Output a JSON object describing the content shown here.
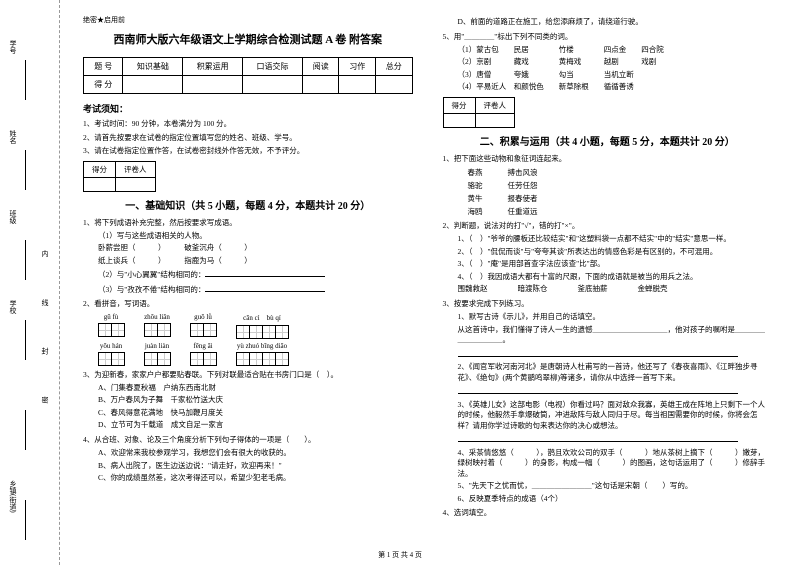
{
  "sidebar": {
    "labels": [
      "学号",
      "姓名",
      "班级",
      "学校",
      "",
      "乡镇(街道)"
    ],
    "vert": "内 线 封 密"
  },
  "header": {
    "secret": "绝密★启用前",
    "title": "西南师大版六年级语文上学期综合检测试题 A 卷 附答案"
  },
  "score_table": {
    "row1": [
      "题 号",
      "知识基础",
      "积累运用",
      "口语交际",
      "阅读",
      "习作",
      "总分"
    ],
    "row2": [
      "得 分",
      "",
      "",
      "",
      "",
      "",
      ""
    ]
  },
  "notice": {
    "head": "考试须知：",
    "items": [
      "1、考试时间：90 分钟，本卷满分为 100 分。",
      "2、请首先按要求在试卷的指定位置填写您的姓名、班级、学号。",
      "3、请在试卷指定位置作答，在试卷密封线外作答无效，不予评分。"
    ]
  },
  "small_score": {
    "c1": "得分",
    "c2": "评卷人"
  },
  "section1": {
    "title": "一、基础知识（共 5 小题，每题 4 分，本题共计 20 分）",
    "q1": "1、将下列成语补充完整，然后按要求写成语。",
    "q1a": "（1）写与这些成语相关的人物。",
    "q1_words1a": "卧薪尝胆（　　　）",
    "q1_words1b": "破釜沉舟（　　　）",
    "q1_words2a": "纸上谈兵（　　　）",
    "q1_words2b": "指鹿为马（　　　）",
    "q1b": "（2）与\"小心翼翼\"结构相同的：",
    "q1c": "（3）与\"孜孜不倦\"结构相同的：",
    "q2": "2、看拼音，写词语。",
    "pinyin1": [
      "gū fù",
      "zhōu liǎn",
      "guō lǜ",
      "cān cì",
      "bù qí"
    ],
    "pinyin2": [
      "yōu hán",
      "juàn liàn",
      "fēng āi",
      "",
      "yù zhuó bīng diāo"
    ],
    "q3": "3、为迎新春，家家户户都要贴春联。下列对联最适合贴在书房门口是（　）。",
    "q3a": "A、门集春夏秋福　户纳东西南北财",
    "q3b": "B、万户春风为子舞　千家松竹送大庆",
    "q3c": "C、春风得意花满地　快马加鞭月度关",
    "q3d": "D、立节可为千载道　成文自足一家言",
    "q4": "4、从合班、对象、论及三个角度分析下列句子得体的一项是（　　）。",
    "q4a": "A、欢迎常来我校参观学习，我想您们会有很大的收获的。",
    "q4b": "B、病人出院了，医生边送边说：\"请走好，欢迎再来！\"",
    "q4c": "C、你的成绩虽然差，这次考得还可以，希望少犯老毛病。"
  },
  "right": {
    "rD": "D、前面的道路正在施工，给您添麻烦了，请绕道行驶。",
    "q5": "5、用\"＿＿＿＿\"标出下列不同类的词。",
    "r5_1": "（1）蒙古包　　民居　　　　竹楼　　　　四点金　　四合院",
    "r5_2": "（2）京剧　　　藏戏　　　　黄梅戏　　　越剧　　　戏剧",
    "r5_3": "（3）唐僧　　　夸娥　　　　勾当　　　　当机立断",
    "r5_4": "（4）平易近人　和颜悦色　　新草除根　　循循善诱",
    "section2_title": "二、积累与运用（共 4 小题，每题 5 分，本题共计 20 分）",
    "q1": "1、把下面这些动物和象征词连起来。",
    "w1a": "春燕",
    "w1b": "搏击风浪",
    "w2a": "骆驼",
    "w2b": "任劳任怨",
    "w3a": "黄牛",
    "w3b": "报春使者",
    "w4a": "海鸥",
    "w4b": "任重道远",
    "q2": "2、判断题，说法对的打\"√\"，错的打\"×\"。",
    "q2_1": "1、（　）\"爷爷的腰板还比较结实\"和\"这塑料袋一点都不结实\"中的\"结实\"意思一样。",
    "q2_2": "2、（　）\"侃侃而谈\"与\"夸夸其谈\"所表达出的情感色彩是有区别的，不可混用。",
    "q2_3": "3、（　）\"庵\"是用部首查字法应该查\"比\"部。",
    "q2_4": "4、（　）我因成语大都有十富的尺跟，下面的成语就是被当的用兵之法。",
    "q2_5a": "围魏救赵　　　　暗渡陈仓　　　　釜底抽薪　　　　金蝉脱壳",
    "q3": "3、按要求完成下列练习。",
    "q3_1": "1、默写古诗《示儿》，并用自己的话填空。",
    "q3_1a": "从这首诗中，我们懂得了诗人一生的遗憾＿＿＿＿＿＿＿＿＿＿，他对孩子的嘱咐是＿＿＿＿＿＿＿＿＿＿。",
    "q3_2": "2、《闻官军收河南河北》是唐朝诗人杜甫写的一首诗，他还写了《春夜喜雨》、《江畔独步寻花》、《绝句》(两个黄鹂鸣翠柳)等诸多，请你从中选择一首写下来。",
    "q3_3": "3、《英雄儿女》这部电影（电视）你看过吗？面对敌众我寡，英雄王成在阵地上只剩下一个人的时候，他毅然手拿爆破筒，冲进敌阵与敌人同归于尽。每当祖国需要你的时候，你将会怎样？请用你学过诗歌的句来表达你的决心或想法。",
    "q4": "4、采茶情悠悠（　　　），鹊且欢欢公司的双手（　　　）地从茶树上摘下（　　　）嫩芽，绿树映衬着（　　　）的身影，构成一幅（　　　）的图画，这句话运用了（　　　）修辞手法。",
    "q4_5": "5、\"先天下之忧而忧，＿＿＿＿＿＿＿＿\"这句话是宋朝（　　）写的。",
    "q4_6": "6、反映夏季特点的成语（4个）",
    "q4_7": "4、选词填空。"
  },
  "footer": "第 1 页 共 4 页"
}
